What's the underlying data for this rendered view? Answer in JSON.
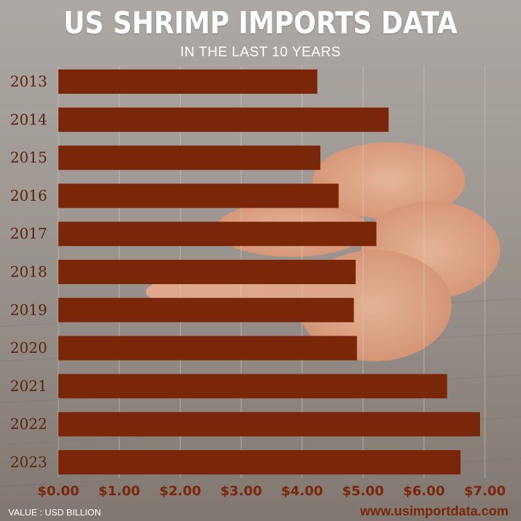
{
  "header": {
    "title": "US SHRIMP IMPORTS DATA",
    "subtitle": "IN THE LAST 10 YEARS"
  },
  "footer": {
    "note": "VALUE : USD BILLION",
    "website": "www.usimportdata.com"
  },
  "colors": {
    "bar": "#7a2608",
    "background": "#8c8680",
    "shrimp": "#e89a72"
  },
  "chart_data": {
    "type": "bar",
    "orientation": "horizontal",
    "categories": [
      "2013",
      "2014",
      "2015",
      "2016",
      "2017",
      "2018",
      "2019",
      "2020",
      "2021",
      "2022",
      "2023"
    ],
    "values": [
      4.25,
      5.42,
      4.3,
      4.6,
      5.22,
      4.88,
      4.85,
      4.9,
      6.38,
      6.92,
      6.6
    ],
    "x_ticks": [
      "$0.00",
      "$1.00",
      "$2.00",
      "$3.00",
      "$4.00",
      "$5.00",
      "$6.00",
      "$7.00"
    ],
    "xlim": [
      0,
      7
    ],
    "grid": true
  }
}
